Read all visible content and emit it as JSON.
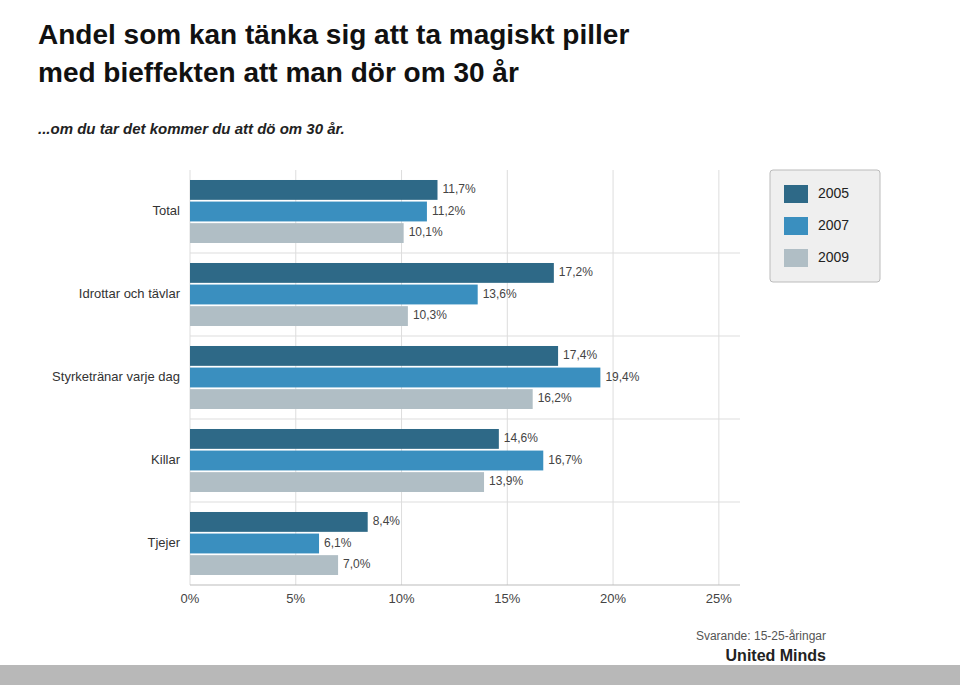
{
  "chart_data": {
    "type": "bar",
    "orientation": "horizontal",
    "title": [
      "Andel som kan tänka sig att ta magiskt piller",
      "med bieffekten att man dör om 30 år"
    ],
    "subtitle": "...om du tar det kommer du att dö om 30 år.",
    "annotations": [
      "Svarande: 15-25-åringar",
      "United Minds"
    ],
    "categories": [
      "Total",
      "Idrottar och tävlar",
      "Styrketränar varje dag",
      "Killar",
      "Tjejer"
    ],
    "series": [
      {
        "name": "2005",
        "color": "#2e6987",
        "values": [
          11.7,
          17.2,
          17.4,
          14.6,
          8.4
        ],
        "value_labels": [
          "11,7%",
          "17,2%",
          "17,4%",
          "14,6%",
          "8,4%"
        ]
      },
      {
        "name": "2007",
        "color": "#3a8fbf",
        "values": [
          11.2,
          13.6,
          19.4,
          16.7,
          6.1
        ],
        "value_labels": [
          "11,2%",
          "13,6%",
          "19,4%",
          "16,7%",
          "6,1%"
        ]
      },
      {
        "name": "2009",
        "color": "#b0bec5",
        "values": [
          10.1,
          10.3,
          16.2,
          13.9,
          7.0
        ],
        "value_labels": [
          "10,1%",
          "10,3%",
          "16,2%",
          "13,9%",
          "7,0%"
        ]
      }
    ],
    "xlim": [
      0,
      26
    ],
    "xticks": [
      {
        "value": 0,
        "label": "0%"
      },
      {
        "value": 5,
        "label": "5%"
      },
      {
        "value": 10,
        "label": "10%"
      },
      {
        "value": 15,
        "label": "15%"
      },
      {
        "value": 20,
        "label": "20%"
      },
      {
        "value": 25,
        "label": "25%"
      }
    ],
    "grid": true,
    "legend": "right",
    "data_labels": true
  }
}
